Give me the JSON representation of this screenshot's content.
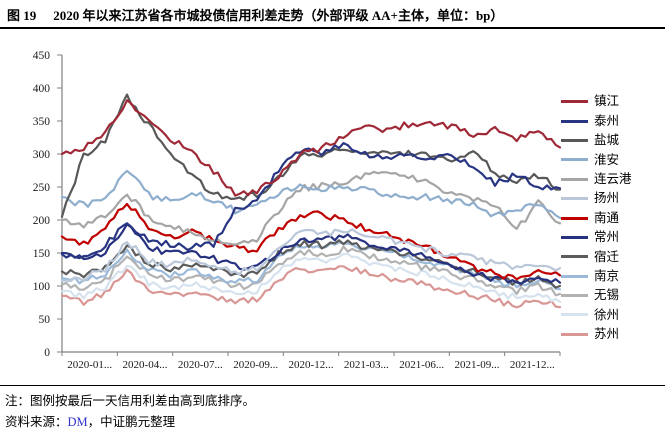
{
  "figure": {
    "label": "图 19",
    "title": "2020 年以来江苏省各市城投债信用利差走势（外部评级 AA+主体，单位：bp）"
  },
  "notes": {
    "note": "注：图例按最后一天信用利差由高到底排序。",
    "source_prefix": "资料来源：",
    "source_link": "DM",
    "source_suffix": "，中证鹏元整理"
  },
  "chart_data": {
    "type": "line",
    "title": "2020 年以来江苏省各市城投债信用利差走势（外部评级 AA+主体，单位：bp）",
    "xlabel": "",
    "ylabel": "",
    "ylim": [
      0,
      450
    ],
    "y_ticks": [
      0,
      50,
      100,
      150,
      200,
      250,
      300,
      350,
      400,
      450
    ],
    "grid": false,
    "legend_position": "right",
    "axis_color": "#808080",
    "tick_label_color": "#1a1a1a",
    "x": [
      "2020-01",
      "2020-02",
      "2020-03",
      "2020-04",
      "2020-05",
      "2020-06",
      "2020-07",
      "2020-08",
      "2020-09",
      "2020-10",
      "2020-11",
      "2020-12",
      "2021-01",
      "2021-02",
      "2021-03",
      "2021-04",
      "2021-05",
      "2021-06",
      "2021-07",
      "2021-08",
      "2021-09",
      "2021-10",
      "2021-11",
      "2021-12"
    ],
    "x_tick_labels": [
      "2020-01...",
      "2020-04...",
      "2020-07...",
      "2020-09...",
      "2020-12...",
      "2021-03...",
      "2021-06...",
      "2021-09...",
      "2021-12..."
    ],
    "unit": "bp",
    "series": [
      {
        "name": "镇江",
        "color": "#A02937",
        "values": [
          300,
          310,
          332,
          380,
          350,
          324,
          304,
          274,
          240,
          243,
          266,
          300,
          308,
          328,
          341,
          337,
          345,
          348,
          342,
          328,
          338,
          322,
          334,
          310
        ]
      },
      {
        "name": "泰州",
        "color": "#283583",
        "values": [
          148,
          142,
          162,
          196,
          172,
          162,
          158,
          164,
          216,
          228,
          275,
          305,
          302,
          315,
          300,
          295,
          298,
          290,
          298,
          284,
          255,
          268,
          252,
          248
        ]
      },
      {
        "name": "盐城",
        "color": "#585858",
        "values": [
          205,
          298,
          322,
          386,
          345,
          300,
          267,
          240,
          232,
          238,
          262,
          300,
          298,
          308,
          301,
          303,
          300,
          298,
          290,
          302,
          272,
          258,
          268,
          246
        ]
      },
      {
        "name": "淮安",
        "color": "#8FAECE",
        "values": [
          235,
          222,
          232,
          278,
          238,
          228,
          241,
          230,
          215,
          222,
          240,
          252,
          246,
          250,
          246,
          240,
          236,
          234,
          230,
          224,
          206,
          216,
          224,
          203
        ]
      },
      {
        "name": "连云港",
        "color": "#A5A5A5",
        "values": [
          200,
          192,
          208,
          240,
          205,
          188,
          182,
          172,
          165,
          172,
          215,
          248,
          252,
          258,
          268,
          274,
          268,
          255,
          240,
          230,
          222,
          185,
          225,
          195
        ]
      },
      {
        "name": "扬州",
        "color": "#B9C7D9",
        "values": [
          108,
          112,
          126,
          168,
          138,
          130,
          143,
          132,
          120,
          128,
          158,
          182,
          178,
          185,
          175,
          170,
          162,
          154,
          148,
          142,
          134,
          128,
          132,
          127
        ]
      },
      {
        "name": "南通",
        "color": "#C00000",
        "values": [
          175,
          165,
          186,
          228,
          188,
          175,
          182,
          170,
          158,
          155,
          185,
          206,
          209,
          200,
          188,
          178,
          168,
          158,
          142,
          128,
          118,
          110,
          122,
          116
        ]
      },
      {
        "name": "常州",
        "color": "#26317F",
        "values": [
          150,
          140,
          152,
          192,
          158,
          148,
          152,
          142,
          130,
          127,
          152,
          168,
          172,
          176,
          166,
          160,
          152,
          142,
          132,
          120,
          110,
          105,
          116,
          105
        ]
      },
      {
        "name": "宿迁",
        "color": "#5C5C5C",
        "values": [
          122,
          115,
          128,
          162,
          135,
          125,
          132,
          125,
          115,
          118,
          148,
          165,
          162,
          168,
          158,
          152,
          146,
          138,
          130,
          122,
          112,
          104,
          112,
          100
        ]
      },
      {
        "name": "南京",
        "color": "#9BBAD9",
        "values": [
          112,
          106,
          118,
          152,
          125,
          115,
          122,
          115,
          105,
          110,
          142,
          162,
          158,
          165,
          155,
          150,
          144,
          136,
          128,
          118,
          108,
          100,
          110,
          95
        ]
      },
      {
        "name": "无锡",
        "color": "#B2B2B2",
        "values": [
          102,
          96,
          108,
          148,
          118,
          108,
          115,
          108,
          98,
          102,
          135,
          152,
          148,
          155,
          146,
          140,
          134,
          126,
          118,
          110,
          100,
          92,
          100,
          88
        ]
      },
      {
        "name": "徐州",
        "color": "#D6E2EE",
        "values": [
          92,
          85,
          98,
          132,
          105,
          95,
          102,
          96,
          88,
          92,
          125,
          142,
          138,
          146,
          136,
          130,
          124,
          116,
          108,
          100,
          90,
          82,
          90,
          76
        ]
      },
      {
        "name": "苏州",
        "color": "#D89795",
        "values": [
          85,
          76,
          90,
          120,
          95,
          85,
          92,
          85,
          75,
          80,
          112,
          125,
          122,
          130,
          120,
          112,
          106,
          100,
          92,
          86,
          78,
          72,
          80,
          68
        ]
      }
    ]
  }
}
